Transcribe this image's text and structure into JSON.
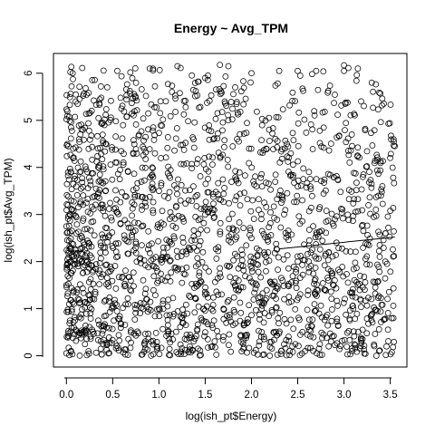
{
  "chart_data": {
    "type": "scatter",
    "title": "Energy ~ Avg_TPM",
    "xlabel": "log(ish_pt$Energy)",
    "ylabel": "log(ish_pt$Avg_TPM)",
    "xlim": [
      -0.14,
      3.68
    ],
    "ylim": [
      -0.24,
      6.42
    ],
    "x_ticks": [
      0.0,
      0.5,
      1.0,
      1.5,
      2.0,
      2.5,
      3.0,
      3.5
    ],
    "x_tick_labels": [
      "0.0",
      "0.5",
      "1.0",
      "1.5",
      "2.0",
      "2.5",
      "3.0",
      "3.5"
    ],
    "y_ticks": [
      0,
      1,
      2,
      3,
      4,
      5,
      6
    ],
    "y_tick_labels": [
      "0",
      "1",
      "2",
      "3",
      "4",
      "5",
      "6"
    ],
    "grid": false,
    "legend": "none",
    "marker": "open-circle",
    "point_count_estimate": 2000,
    "x_range": [
      0.0,
      3.55
    ],
    "y_range": [
      0.0,
      6.2
    ],
    "fit_line": {
      "x": [
        2.3,
        3.55
      ],
      "y": [
        2.27,
        2.52
      ]
    },
    "points_sample": [
      [
        0.05,
        0.1
      ],
      [
        0.2,
        0.5
      ],
      [
        0.3,
        1.2
      ],
      [
        0.4,
        2.3
      ],
      [
        0.55,
        6.05
      ],
      [
        0.9,
        6.1
      ],
      [
        1.2,
        6.15
      ],
      [
        1.5,
        5.9
      ],
      [
        1.75,
        6.15
      ],
      [
        2.0,
        6.0
      ],
      [
        2.3,
        6.05
      ],
      [
        2.5,
        6.05
      ],
      [
        2.7,
        6.05
      ],
      [
        3.0,
        6.05
      ],
      [
        3.15,
        6.1
      ],
      [
        3.3,
        5.8
      ],
      [
        3.55,
        4.45
      ],
      [
        3.5,
        4.2
      ],
      [
        3.45,
        2.6
      ],
      [
        3.4,
        3.4
      ],
      [
        3.35,
        0.0
      ],
      [
        3.38,
        0.1
      ],
      [
        3.2,
        0.35
      ],
      [
        3.1,
        1.0
      ],
      [
        2.9,
        1.6
      ],
      [
        0.05,
        4.85
      ],
      [
        0.1,
        5.4
      ],
      [
        0.15,
        4.7
      ],
      [
        0.05,
        3.9
      ],
      [
        0.0,
        2.75
      ],
      [
        0.05,
        2.0
      ],
      [
        0.0,
        1.5
      ],
      [
        0.08,
        0.6
      ],
      [
        0.0,
        0.05
      ],
      [
        1.0,
        3.5
      ],
      [
        1.5,
        3.0
      ],
      [
        2.0,
        2.5
      ],
      [
        2.5,
        2.0
      ],
      [
        1.0,
        1.0
      ],
      [
        1.5,
        0.5
      ]
    ]
  }
}
